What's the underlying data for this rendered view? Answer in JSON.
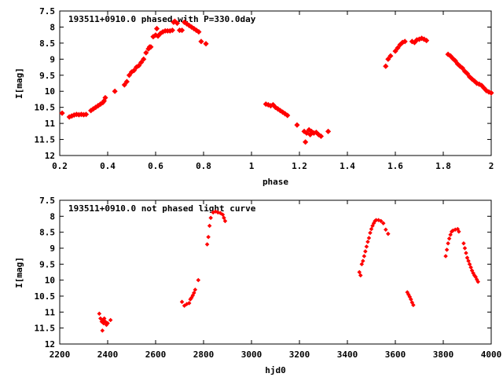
{
  "chart_data": [
    {
      "type": "scatter",
      "title": "193511+0910.0 phased with P=330.0day",
      "xlabel": "phase",
      "ylabel": "I[mag]",
      "xlim": [
        0.2,
        2.0
      ],
      "ylim": [
        7.5,
        12
      ],
      "y_inverted": true,
      "x_ticks": [
        0.2,
        0.4,
        0.6,
        0.8,
        1,
        1.2,
        1.4,
        1.6,
        1.8,
        2
      ],
      "x_tick_labels": [
        "0.2",
        "0.4",
        "0.6",
        "0.8",
        "1",
        "1.2",
        "1.4",
        "1.6",
        "1.8",
        "2"
      ],
      "y_ticks": [
        7.5,
        8,
        8.5,
        9,
        9.5,
        10,
        10.5,
        11,
        11.5,
        12
      ],
      "y_tick_labels": [
        "7.5",
        "8",
        "8.5",
        "9",
        "9.5",
        "10",
        "10.5",
        "11",
        "11.5",
        "12"
      ],
      "marker_color": "#ff0000",
      "series": [
        {
          "points": [
            [
              0.21,
              10.68
            ],
            [
              0.24,
              10.8
            ],
            [
              0.25,
              10.77
            ],
            [
              0.26,
              10.74
            ],
            [
              0.27,
              10.72
            ],
            [
              0.28,
              10.73
            ],
            [
              0.29,
              10.72
            ],
            [
              0.3,
              10.73
            ],
            [
              0.31,
              10.72
            ],
            [
              0.33,
              10.6
            ],
            [
              0.34,
              10.55
            ],
            [
              0.35,
              10.5
            ],
            [
              0.36,
              10.45
            ],
            [
              0.37,
              10.4
            ],
            [
              0.38,
              10.35
            ],
            [
              0.385,
              10.3
            ],
            [
              0.39,
              10.2
            ],
            [
              0.43,
              10.0
            ],
            [
              0.47,
              9.8
            ],
            [
              0.48,
              9.7
            ],
            [
              0.49,
              9.5
            ],
            [
              0.5,
              9.4
            ],
            [
              0.51,
              9.35
            ],
            [
              0.52,
              9.25
            ],
            [
              0.53,
              9.2
            ],
            [
              0.54,
              9.1
            ],
            [
              0.55,
              9.0
            ],
            [
              0.56,
              8.8
            ],
            [
              0.57,
              8.68
            ],
            [
              0.575,
              8.62
            ],
            [
              0.58,
              8.62
            ],
            [
              0.59,
              8.3
            ],
            [
              0.6,
              8.25
            ],
            [
              0.605,
              8.05
            ],
            [
              0.61,
              8.28
            ],
            [
              0.62,
              8.2
            ],
            [
              0.63,
              8.15
            ],
            [
              0.64,
              8.12
            ],
            [
              0.65,
              8.12
            ],
            [
              0.66,
              8.12
            ],
            [
              0.67,
              8.1
            ],
            [
              0.675,
              7.85
            ],
            [
              0.68,
              7.82
            ],
            [
              0.69,
              7.88
            ],
            [
              0.7,
              8.1
            ],
            [
              0.71,
              8.1
            ],
            [
              0.72,
              7.85
            ],
            [
              0.73,
              7.9
            ],
            [
              0.74,
              7.95
            ],
            [
              0.75,
              8.0
            ],
            [
              0.76,
              8.05
            ],
            [
              0.77,
              8.1
            ],
            [
              0.78,
              8.15
            ],
            [
              0.79,
              8.45
            ],
            [
              0.81,
              8.52
            ],
            [
              1.06,
              10.4
            ],
            [
              1.07,
              10.42
            ],
            [
              1.08,
              10.45
            ],
            [
              1.09,
              10.42
            ],
            [
              1.1,
              10.5
            ],
            [
              1.11,
              10.55
            ],
            [
              1.12,
              10.6
            ],
            [
              1.13,
              10.65
            ],
            [
              1.14,
              10.7
            ],
            [
              1.15,
              10.75
            ],
            [
              1.19,
              11.05
            ],
            [
              1.22,
              11.25
            ],
            [
              1.225,
              11.58
            ],
            [
              1.23,
              11.3
            ],
            [
              1.24,
              11.2
            ],
            [
              1.245,
              11.35
            ],
            [
              1.25,
              11.25
            ],
            [
              1.26,
              11.3
            ],
            [
              1.27,
              11.28
            ],
            [
              1.28,
              11.35
            ],
            [
              1.29,
              11.4
            ],
            [
              1.32,
              11.25
            ],
            [
              1.56,
              9.22
            ],
            [
              1.57,
              9.0
            ],
            [
              1.58,
              8.9
            ],
            [
              1.6,
              8.75
            ],
            [
              1.61,
              8.65
            ],
            [
              1.62,
              8.55
            ],
            [
              1.63,
              8.48
            ],
            [
              1.64,
              8.45
            ],
            [
              1.67,
              8.45
            ],
            [
              1.68,
              8.48
            ],
            [
              1.69,
              8.4
            ],
            [
              1.7,
              8.38
            ],
            [
              1.71,
              8.35
            ],
            [
              1.72,
              8.38
            ],
            [
              1.73,
              8.42
            ],
            [
              1.82,
              8.85
            ],
            [
              1.83,
              8.9
            ],
            [
              1.84,
              8.98
            ],
            [
              1.85,
              9.05
            ],
            [
              1.86,
              9.15
            ],
            [
              1.87,
              9.22
            ],
            [
              1.88,
              9.28
            ],
            [
              1.89,
              9.38
            ],
            [
              1.9,
              9.45
            ],
            [
              1.91,
              9.55
            ],
            [
              1.92,
              9.62
            ],
            [
              1.93,
              9.68
            ],
            [
              1.94,
              9.75
            ],
            [
              1.95,
              9.78
            ],
            [
              1.96,
              9.82
            ],
            [
              1.97,
              9.9
            ],
            [
              1.98,
              9.98
            ],
            [
              1.99,
              10.02
            ],
            [
              2.0,
              10.05
            ]
          ]
        }
      ]
    },
    {
      "type": "scatter",
      "title": "193511+0910.0 not phased light curve",
      "xlabel": "hjd0",
      "ylabel": "I[mag]",
      "xlim": [
        2200,
        4000
      ],
      "ylim": [
        7.5,
        12
      ],
      "y_inverted": true,
      "x_ticks": [
        2200,
        2400,
        2600,
        2800,
        3000,
        3200,
        3400,
        3600,
        3800,
        4000
      ],
      "x_tick_labels": [
        "2200",
        "2400",
        "2600",
        "2800",
        "3000",
        "3200",
        "3400",
        "3600",
        "3800",
        "4000"
      ],
      "y_ticks": [
        7.5,
        8,
        8.5,
        9,
        9.5,
        10,
        10.5,
        11,
        11.5,
        12
      ],
      "y_tick_labels": [
        "7.5",
        "8",
        "8.5",
        "9",
        "9.5",
        "10",
        "10.5",
        "11",
        "11.5",
        "12"
      ],
      "marker_color": "#ff0000",
      "series": [
        {
          "points": [
            [
              2365,
              11.05
            ],
            [
              2370,
              11.2
            ],
            [
              2375,
              11.3
            ],
            [
              2378,
              11.58
            ],
            [
              2380,
              11.25
            ],
            [
              2383,
              11.35
            ],
            [
              2386,
              11.2
            ],
            [
              2390,
              11.3
            ],
            [
              2395,
              11.4
            ],
            [
              2400,
              11.35
            ],
            [
              2412,
              11.25
            ],
            [
              2710,
              10.68
            ],
            [
              2720,
              10.8
            ],
            [
              2730,
              10.75
            ],
            [
              2740,
              10.72
            ],
            [
              2745,
              10.6
            ],
            [
              2750,
              10.55
            ],
            [
              2755,
              10.48
            ],
            [
              2760,
              10.4
            ],
            [
              2765,
              10.3
            ],
            [
              2778,
              10.0
            ],
            [
              2815,
              8.88
            ],
            [
              2820,
              8.65
            ],
            [
              2825,
              8.3
            ],
            [
              2830,
              8.05
            ],
            [
              2840,
              7.88
            ],
            [
              2850,
              7.85
            ],
            [
              2860,
              7.88
            ],
            [
              2870,
              7.9
            ],
            [
              2880,
              7.95
            ],
            [
              2885,
              8.05
            ],
            [
              2890,
              8.15
            ],
            [
              3450,
              9.75
            ],
            [
              3455,
              9.85
            ],
            [
              3460,
              9.5
            ],
            [
              3465,
              9.4
            ],
            [
              3470,
              9.25
            ],
            [
              3475,
              9.1
            ],
            [
              3480,
              8.95
            ],
            [
              3485,
              8.8
            ],
            [
              3490,
              8.68
            ],
            [
              3495,
              8.52
            ],
            [
              3500,
              8.4
            ],
            [
              3505,
              8.3
            ],
            [
              3510,
              8.22
            ],
            [
              3515,
              8.15
            ],
            [
              3520,
              8.12
            ],
            [
              3530,
              8.12
            ],
            [
              3540,
              8.15
            ],
            [
              3550,
              8.22
            ],
            [
              3560,
              8.42
            ],
            [
              3570,
              8.55
            ],
            [
              3650,
              10.38
            ],
            [
              3655,
              10.45
            ],
            [
              3660,
              10.52
            ],
            [
              3665,
              10.6
            ],
            [
              3670,
              10.7
            ],
            [
              3675,
              10.78
            ],
            [
              3810,
              9.25
            ],
            [
              3815,
              9.05
            ],
            [
              3820,
              8.85
            ],
            [
              3825,
              8.7
            ],
            [
              3830,
              8.58
            ],
            [
              3835,
              8.48
            ],
            [
              3840,
              8.45
            ],
            [
              3850,
              8.42
            ],
            [
              3860,
              8.4
            ],
            [
              3865,
              8.48
            ],
            [
              3885,
              8.85
            ],
            [
              3890,
              9.0
            ],
            [
              3895,
              9.15
            ],
            [
              3900,
              9.3
            ],
            [
              3905,
              9.4
            ],
            [
              3910,
              9.5
            ],
            [
              3915,
              9.6
            ],
            [
              3920,
              9.7
            ],
            [
              3925,
              9.78
            ],
            [
              3930,
              9.85
            ],
            [
              3935,
              9.9
            ],
            [
              3940,
              9.98
            ],
            [
              3945,
              10.05
            ]
          ]
        }
      ]
    }
  ]
}
